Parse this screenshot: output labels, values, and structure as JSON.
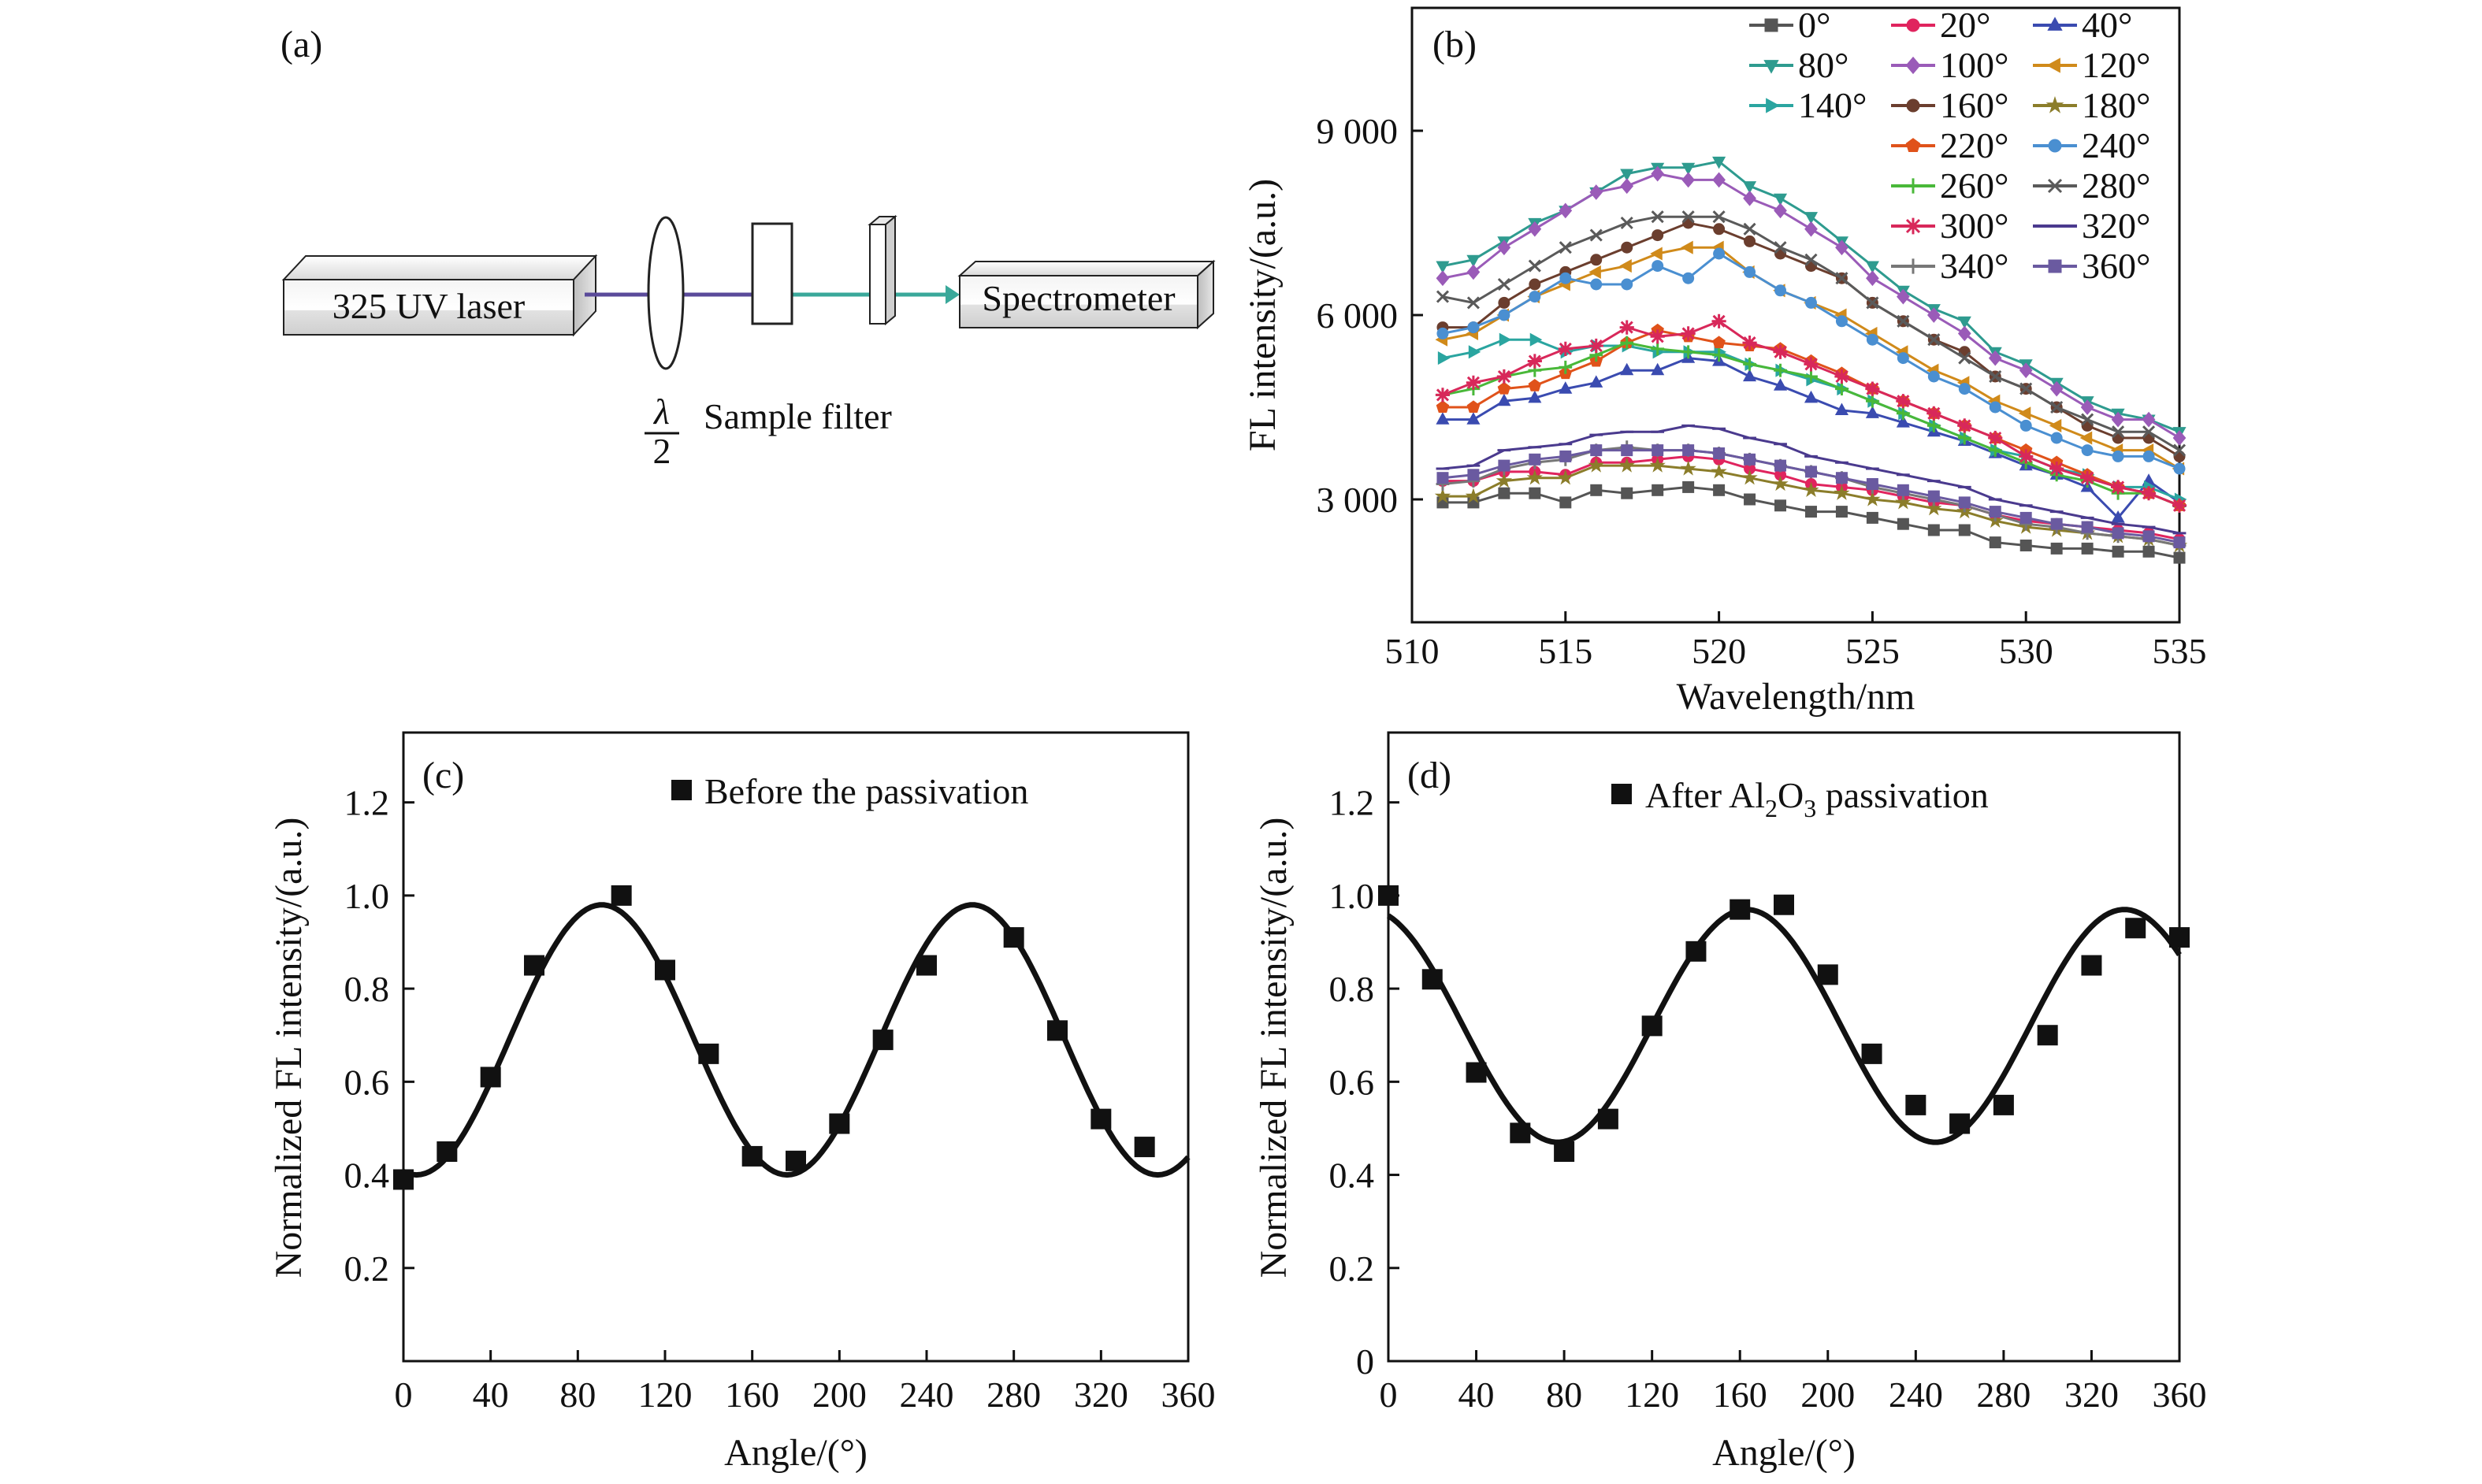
{
  "panel_a": {
    "label": "(a)",
    "laser_label": "325 UV laser",
    "spectrometer_label": "Spectrometer",
    "halfwave_numerator": "λ",
    "halfwave_denominator": "2",
    "components_label": "Sample filter"
  },
  "chart_data": [
    {
      "panel": "(b)",
      "type": "line",
      "xlabel": "Wavelength/nm",
      "ylabel": "FL intensity/(a.u.)",
      "xlim": [
        510,
        535
      ],
      "ylim": [
        1000,
        11000
      ],
      "xticks": [
        510,
        515,
        520,
        525,
        530,
        535
      ],
      "yticks": [
        3000,
        6000,
        9000
      ],
      "ytick_labels": [
        "3 000",
        "6 000",
        "9 000"
      ],
      "legend_position": "top-right",
      "x": [
        511,
        512,
        513,
        514,
        515,
        516,
        517,
        518,
        519,
        520,
        521,
        522,
        523,
        524,
        525,
        526,
        527,
        528,
        529,
        530,
        531,
        532,
        533,
        534,
        535
      ],
      "series": [
        {
          "name": "0°",
          "color": "#555555",
          "marker": "square",
          "values": [
            2950,
            2950,
            3100,
            3100,
            2950,
            3150,
            3100,
            3150,
            3200,
            3150,
            3000,
            2900,
            2800,
            2800,
            2700,
            2600,
            2500,
            2500,
            2300,
            2250,
            2200,
            2200,
            2150,
            2150,
            2050
          ]
        },
        {
          "name": "20°",
          "color": "#e0245e",
          "marker": "circle",
          "values": [
            3300,
            3300,
            3450,
            3450,
            3400,
            3600,
            3600,
            3650,
            3700,
            3650,
            3500,
            3400,
            3250,
            3200,
            3150,
            3050,
            2950,
            2900,
            2750,
            2650,
            2600,
            2550,
            2500,
            2450,
            2350
          ]
        },
        {
          "name": "40°",
          "color": "#3a4bb0",
          "marker": "triangle",
          "values": [
            4300,
            4300,
            4600,
            4650,
            4800,
            4900,
            5100,
            5100,
            5300,
            5250,
            5000,
            4850,
            4650,
            4450,
            4400,
            4250,
            4100,
            3950,
            3750,
            3550,
            3400,
            3200,
            2700,
            3300,
            2950
          ]
        },
        {
          "name": "80°",
          "color": "#2e9b8f",
          "marker": "tridown",
          "values": [
            6800,
            6900,
            7200,
            7500,
            7700,
            8000,
            8300,
            8400,
            8400,
            8500,
            8100,
            7900,
            7600,
            7200,
            6800,
            6400,
            6100,
            5900,
            5400,
            5200,
            4900,
            4600,
            4400,
            4300,
            4100
          ]
        },
        {
          "name": "100°",
          "color": "#9a5bb8",
          "marker": "diamond",
          "values": [
            6600,
            6700,
            7100,
            7400,
            7700,
            8000,
            8100,
            8300,
            8200,
            8200,
            7900,
            7700,
            7400,
            7100,
            6600,
            6300,
            6000,
            5700,
            5300,
            5100,
            4800,
            4500,
            4300,
            4300,
            4000
          ]
        },
        {
          "name": "120°",
          "color": "#d08a1a",
          "marker": "triangle-left",
          "values": [
            5600,
            5700,
            6000,
            6300,
            6500,
            6700,
            6800,
            7000,
            7100,
            7100,
            6700,
            6400,
            6200,
            6000,
            5700,
            5400,
            5100,
            4900,
            4600,
            4400,
            4200,
            4000,
            3800,
            3800,
            3500
          ]
        },
        {
          "name": "140°",
          "color": "#2aa5a0",
          "marker": "triangle-right",
          "values": [
            5300,
            5400,
            5600,
            5600,
            5400,
            5500,
            5500,
            5400,
            5400,
            5400,
            5200,
            5100,
            4950,
            4800,
            4600,
            4400,
            4200,
            4000,
            3800,
            3700,
            3500,
            3400,
            3200,
            3200,
            3000
          ]
        },
        {
          "name": "160°",
          "color": "#6b3e2e",
          "marker": "circle",
          "values": [
            5800,
            5800,
            6200,
            6500,
            6700,
            6900,
            7100,
            7300,
            7500,
            7400,
            7200,
            7000,
            6800,
            6600,
            6200,
            5900,
            5600,
            5400,
            5000,
            4800,
            4500,
            4200,
            4000,
            4000,
            3700
          ]
        },
        {
          "name": "180°",
          "color": "#8b7d2a",
          "marker": "star",
          "values": [
            3050,
            3050,
            3300,
            3350,
            3350,
            3550,
            3550,
            3550,
            3500,
            3450,
            3350,
            3250,
            3150,
            3100,
            3000,
            2950,
            2850,
            2800,
            2650,
            2550,
            2500,
            2450,
            2400,
            2350,
            2250
          ]
        },
        {
          "name": "220°",
          "color": "#e0521a",
          "marker": "pentagon",
          "values": [
            4500,
            4500,
            4800,
            4850,
            5050,
            5250,
            5550,
            5750,
            5650,
            5550,
            5500,
            5450,
            5250,
            5050,
            4800,
            4600,
            4400,
            4200,
            4000,
            3800,
            3600,
            3400,
            3200,
            3100,
            2900
          ]
        },
        {
          "name": "240°",
          "color": "#4a8fd1",
          "marker": "circle",
          "values": [
            5700,
            5800,
            6000,
            6300,
            6600,
            6500,
            6500,
            6800,
            6600,
            7000,
            6700,
            6400,
            6200,
            5900,
            5600,
            5300,
            5000,
            4800,
            4500,
            4200,
            4000,
            3800,
            3700,
            3700,
            3500
          ]
        },
        {
          "name": "260°",
          "color": "#49b839",
          "marker": "plus",
          "values": [
            4700,
            4800,
            5000,
            5100,
            5150,
            5350,
            5550,
            5450,
            5400,
            5350,
            5200,
            5100,
            5000,
            4800,
            4600,
            4400,
            4200,
            4000,
            3800,
            3600,
            3400,
            3300,
            3100,
            3100,
            2900
          ]
        },
        {
          "name": "280°",
          "color": "#5a5a5a",
          "marker": "cross",
          "values": [
            6300,
            6200,
            6500,
            6800,
            7100,
            7300,
            7500,
            7600,
            7600,
            7600,
            7400,
            7100,
            6900,
            6600,
            6200,
            5900,
            5600,
            5300,
            5000,
            4800,
            4500,
            4300,
            4100,
            4100,
            3800
          ]
        },
        {
          "name": "300°",
          "color": "#d8285a",
          "marker": "asterisk",
          "values": [
            4700,
            4900,
            5000,
            5250,
            5450,
            5500,
            5800,
            5650,
            5700,
            5900,
            5550,
            5400,
            5200,
            5000,
            4800,
            4600,
            4400,
            4200,
            4000,
            3700,
            3500,
            3350,
            3200,
            3100,
            2900
          ]
        },
        {
          "name": "320°",
          "color": "#4a3a8e",
          "marker": "line",
          "values": [
            3500,
            3550,
            3800,
            3850,
            3900,
            4050,
            4100,
            4100,
            4200,
            4150,
            4000,
            3900,
            3700,
            3600,
            3500,
            3400,
            3300,
            3200,
            3000,
            2900,
            2800,
            2700,
            2600,
            2550,
            2450
          ]
        },
        {
          "name": "340°",
          "color": "#777777",
          "marker": "plus",
          "values": [
            3250,
            3300,
            3500,
            3600,
            3650,
            3800,
            3850,
            3800,
            3800,
            3750,
            3650,
            3550,
            3450,
            3350,
            3200,
            3100,
            3000,
            2900,
            2750,
            2600,
            2550,
            2450,
            2400,
            2350,
            2250
          ]
        },
        {
          "name": "360°",
          "color": "#6a5aa0",
          "marker": "square",
          "values": [
            3350,
            3400,
            3550,
            3650,
            3700,
            3800,
            3800,
            3800,
            3800,
            3750,
            3650,
            3550,
            3450,
            3350,
            3250,
            3150,
            3050,
            2950,
            2800,
            2700,
            2600,
            2550,
            2450,
            2400,
            2300
          ]
        }
      ]
    },
    {
      "panel": "(c)",
      "type": "scatter",
      "legend": "Before the passivation",
      "xlabel": "Angle/(°)",
      "ylabel": "Normalized FL intensity/(a.u.)",
      "xlim": [
        0,
        360
      ],
      "ylim": [
        0,
        1.35
      ],
      "xticks": [
        0,
        40,
        80,
        120,
        160,
        200,
        240,
        280,
        320,
        360
      ],
      "yticks": [
        0.2,
        0.4,
        0.6,
        0.8,
        1.0,
        1.2
      ],
      "ytick_labels": [
        "0.2",
        "0.4",
        "0.6",
        "0.8",
        "1.0",
        "1.2"
      ],
      "points": {
        "x": [
          0,
          20,
          40,
          60,
          100,
          120,
          140,
          160,
          180,
          200,
          220,
          240,
          280,
          300,
          320,
          340
        ],
        "y": [
          0.39,
          0.45,
          0.61,
          0.85,
          1.0,
          0.84,
          0.66,
          0.44,
          0.43,
          0.51,
          0.69,
          0.85,
          0.91,
          0.71,
          0.52,
          0.46
        ]
      },
      "fit": {
        "mean": 0.69,
        "amplitude": 0.29,
        "period": 170,
        "phase_deg": 91
      }
    },
    {
      "panel": "(d)",
      "type": "scatter",
      "legend_prefix": "After Al",
      "legend_sub1": "2",
      "legend_mid": "O",
      "legend_sub2": "3",
      "legend_suffix": " passivation",
      "xlabel": "Angle/(°)",
      "ylabel": "Normalized FL intensity/(a.u.)",
      "xlim": [
        0,
        360
      ],
      "ylim": [
        0,
        1.35
      ],
      "xticks": [
        0,
        40,
        80,
        120,
        160,
        200,
        240,
        280,
        320,
        360
      ],
      "yticks": [
        0,
        0.2,
        0.4,
        0.6,
        0.8,
        1.0,
        1.2
      ],
      "ytick_labels": [
        "0",
        "0.2",
        "0.4",
        "0.6",
        "0.8",
        "1.0",
        "1.2"
      ],
      "points": {
        "x": [
          0,
          20,
          40,
          60,
          80,
          100,
          120,
          140,
          160,
          180,
          200,
          220,
          240,
          260,
          280,
          300,
          320,
          340,
          360
        ],
        "y": [
          1.0,
          0.82,
          0.62,
          0.49,
          0.45,
          0.52,
          0.72,
          0.88,
          0.97,
          0.98,
          0.83,
          0.66,
          0.55,
          0.51,
          0.55,
          0.7,
          0.85,
          0.93,
          0.91
        ]
      },
      "fit": {
        "mean": 0.72,
        "amplitude": 0.25,
        "period": 172,
        "phase_deg": 163
      }
    }
  ]
}
